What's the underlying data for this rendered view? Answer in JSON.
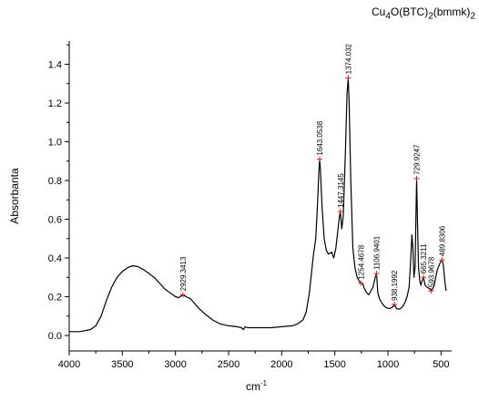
{
  "chart_data": {
    "type": "line",
    "title_parts": {
      "a": "Cu",
      "b": "4",
      "c": "O(BTC)",
      "d": "2",
      "e": "(bmmk)",
      "f": "2"
    },
    "xlabel_base": "cm",
    "xlabel_sup": "-1",
    "ylabel": "Absorbanta",
    "xlim": [
      4000,
      400
    ],
    "ylim": [
      -0.08,
      1.52
    ],
    "x_ticks": [
      4000,
      3500,
      3000,
      2500,
      2000,
      1500,
      1000,
      500
    ],
    "y_ticks": [
      0.0,
      0.2,
      0.4,
      0.6,
      0.8,
      1.0,
      1.2,
      1.4
    ],
    "x_tick_labels": [
      "4000",
      "3500",
      "3000",
      "2500",
      "2000",
      "1500",
      "1000",
      "500"
    ],
    "y_tick_labels": [
      "0.0",
      "0.2",
      "0.4",
      "0.6",
      "0.8",
      "1.0",
      "1.2",
      "1.4"
    ],
    "grid": false,
    "color": "#000000",
    "marker_color": "#e02020",
    "series": [
      {
        "points": [
          [
            4000,
            0.02
          ],
          [
            3900,
            0.02
          ],
          [
            3800,
            0.03
          ],
          [
            3750,
            0.05
          ],
          [
            3700,
            0.1
          ],
          [
            3650,
            0.18
          ],
          [
            3600,
            0.25
          ],
          [
            3550,
            0.3
          ],
          [
            3500,
            0.33
          ],
          [
            3450,
            0.35
          ],
          [
            3400,
            0.36
          ],
          [
            3350,
            0.355
          ],
          [
            3300,
            0.34
          ],
          [
            3250,
            0.32
          ],
          [
            3200,
            0.3
          ],
          [
            3150,
            0.27
          ],
          [
            3100,
            0.24
          ],
          [
            3050,
            0.22
          ],
          [
            3000,
            0.2
          ],
          [
            2970,
            0.195
          ],
          [
            2929,
            0.21
          ],
          [
            2900,
            0.2
          ],
          [
            2860,
            0.19
          ],
          [
            2820,
            0.165
          ],
          [
            2780,
            0.14
          ],
          [
            2720,
            0.11
          ],
          [
            2650,
            0.08
          ],
          [
            2580,
            0.06
          ],
          [
            2500,
            0.05
          ],
          [
            2420,
            0.045
          ],
          [
            2380,
            0.04
          ],
          [
            2360,
            0.03
          ],
          [
            2345,
            0.045
          ],
          [
            2320,
            0.04
          ],
          [
            2200,
            0.04
          ],
          [
            2100,
            0.04
          ],
          [
            2000,
            0.045
          ],
          [
            1900,
            0.05
          ],
          [
            1850,
            0.06
          ],
          [
            1800,
            0.08
          ],
          [
            1770,
            0.12
          ],
          [
            1740,
            0.22
          ],
          [
            1720,
            0.32
          ],
          [
            1700,
            0.42
          ],
          [
            1680,
            0.5
          ],
          [
            1665,
            0.65
          ],
          [
            1650,
            0.85
          ],
          [
            1643,
            0.91
          ],
          [
            1635,
            0.85
          ],
          [
            1620,
            0.66
          ],
          [
            1600,
            0.5
          ],
          [
            1580,
            0.44
          ],
          [
            1560,
            0.42
          ],
          [
            1530,
            0.43
          ],
          [
            1510,
            0.4
          ],
          [
            1490,
            0.45
          ],
          [
            1470,
            0.55
          ],
          [
            1455,
            0.62
          ],
          [
            1447,
            0.64
          ],
          [
            1435,
            0.55
          ],
          [
            1420,
            0.62
          ],
          [
            1400,
            0.95
          ],
          [
            1385,
            1.25
          ],
          [
            1374,
            1.33
          ],
          [
            1365,
            1.2
          ],
          [
            1350,
            0.8
          ],
          [
            1330,
            0.45
          ],
          [
            1310,
            0.35
          ],
          [
            1290,
            0.3
          ],
          [
            1270,
            0.28
          ],
          [
            1254,
            0.27
          ],
          [
            1240,
            0.27
          ],
          [
            1220,
            0.24
          ],
          [
            1200,
            0.22
          ],
          [
            1180,
            0.21
          ],
          [
            1160,
            0.23
          ],
          [
            1140,
            0.25
          ],
          [
            1120,
            0.3
          ],
          [
            1107,
            0.32
          ],
          [
            1095,
            0.22
          ],
          [
            1080,
            0.19
          ],
          [
            1060,
            0.17
          ],
          [
            1040,
            0.155
          ],
          [
            1020,
            0.145
          ],
          [
            1000,
            0.14
          ],
          [
            980,
            0.14
          ],
          [
            960,
            0.145
          ],
          [
            938,
            0.16
          ],
          [
            920,
            0.14
          ],
          [
            900,
            0.135
          ],
          [
            880,
            0.14
          ],
          [
            860,
            0.15
          ],
          [
            840,
            0.17
          ],
          [
            820,
            0.2
          ],
          [
            800,
            0.25
          ],
          [
            785,
            0.4
          ],
          [
            775,
            0.52
          ],
          [
            765,
            0.45
          ],
          [
            755,
            0.3
          ],
          [
            745,
            0.35
          ],
          [
            737,
            0.6
          ],
          [
            730,
            0.81
          ],
          [
            722,
            0.6
          ],
          [
            712,
            0.35
          ],
          [
            700,
            0.28
          ],
          [
            690,
            0.26
          ],
          [
            680,
            0.28
          ],
          [
            665,
            0.3
          ],
          [
            650,
            0.26
          ],
          [
            635,
            0.25
          ],
          [
            620,
            0.245
          ],
          [
            605,
            0.24
          ],
          [
            594,
            0.23
          ],
          [
            580,
            0.24
          ],
          [
            565,
            0.26
          ],
          [
            550,
            0.3
          ],
          [
            535,
            0.34
          ],
          [
            520,
            0.36
          ],
          [
            505,
            0.38
          ],
          [
            490,
            0.39
          ],
          [
            478,
            0.36
          ],
          [
            468,
            0.3
          ],
          [
            460,
            0.26
          ],
          [
            452,
            0.23
          ]
        ]
      }
    ],
    "peaks": [
      {
        "x": 2929.3413,
        "y": 0.21,
        "label": "2929.3413"
      },
      {
        "x": 1643.0538,
        "y": 0.91,
        "label": "1643.0538"
      },
      {
        "x": 1447.3145,
        "y": 0.64,
        "label": "1447.3145"
      },
      {
        "x": 1374.032,
        "y": 1.33,
        "label": "1374.032"
      },
      {
        "x": 1254.4678,
        "y": 0.27,
        "label": "1254.4678"
      },
      {
        "x": 1106.9401,
        "y": 0.32,
        "label": "1106.9401"
      },
      {
        "x": 938.1992,
        "y": 0.16,
        "label": "938.1992"
      },
      {
        "x": 729.9247,
        "y": 0.81,
        "label": "729.9247"
      },
      {
        "x": 665.3211,
        "y": 0.3,
        "label": "665.3211"
      },
      {
        "x": 593.9678,
        "y": 0.23,
        "label": "593.9678"
      },
      {
        "x": 489.8306,
        "y": 0.39,
        "label": "489.8306"
      }
    ]
  }
}
